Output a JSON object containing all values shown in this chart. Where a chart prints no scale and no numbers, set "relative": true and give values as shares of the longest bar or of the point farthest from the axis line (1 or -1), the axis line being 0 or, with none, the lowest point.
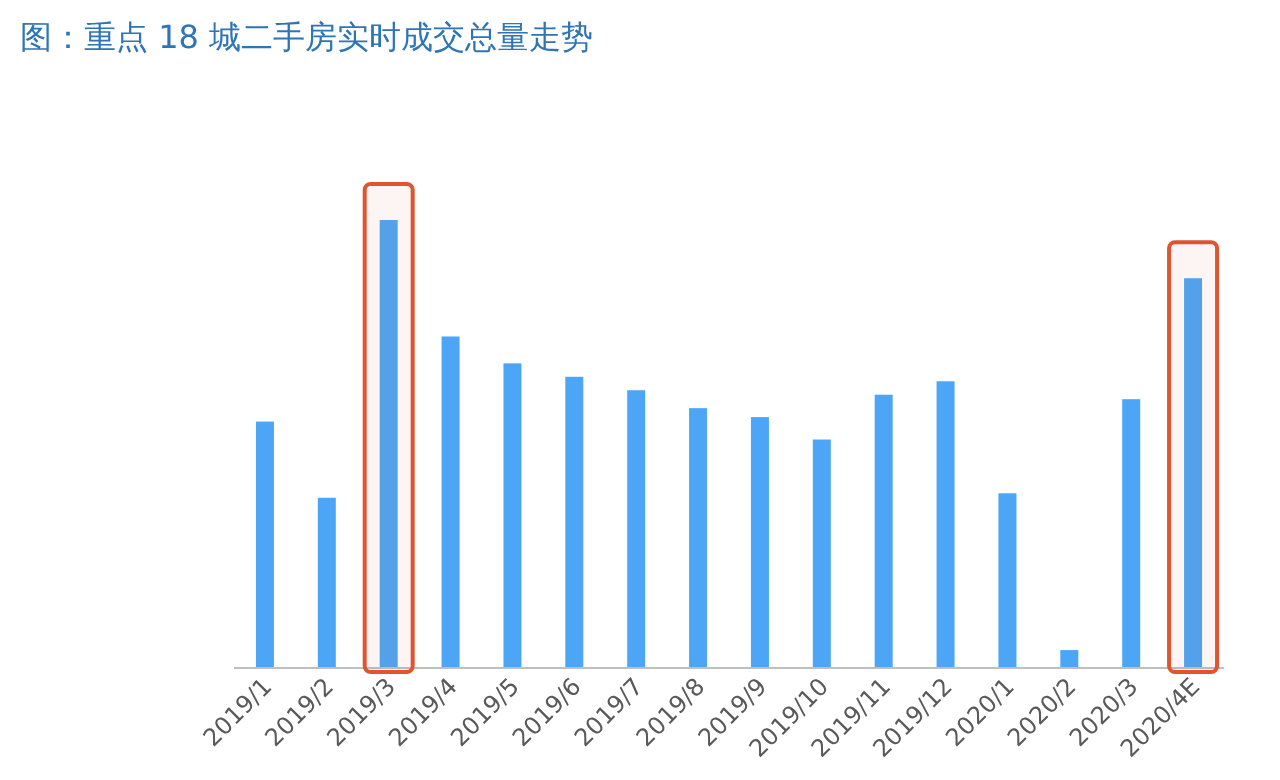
{
  "chart_data": {
    "type": "bar",
    "title": "图：重点 18 城二手房实时成交总量走势",
    "relative": true,
    "categories": [
      "2019/1",
      "2019/2",
      "2019/3",
      "2019/4",
      "2019/5",
      "2019/6",
      "2019/7",
      "2019/8",
      "2019/9",
      "2019/10",
      "2019/11",
      "2019/12",
      "2020/1",
      "2020/2",
      "2020/3",
      "2020/4E"
    ],
    "values": [
      0.55,
      0.38,
      1,
      0.74,
      0.68,
      0.65,
      0.62,
      0.58,
      0.56,
      0.51,
      0.61,
      0.64,
      0.39,
      0.04,
      0.6,
      0.87
    ],
    "color": "#4da6f5",
    "bands": [
      {
        "axis": "x",
        "from": "2019/3",
        "to": "2019/3",
        "color": "#e0542f"
      },
      {
        "axis": "x",
        "from": "2020/4E",
        "to": "2020/4E",
        "color": "#e0542f"
      }
    ],
    "grid": false
  }
}
